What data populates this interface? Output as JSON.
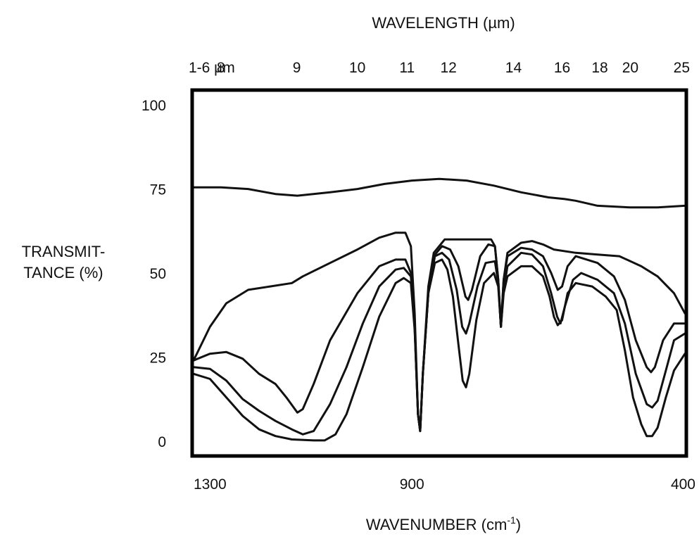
{
  "chart_data": {
    "type": "line",
    "title": "",
    "top_axis_title": "WAVELENGTH (µm)",
    "top_tick_labels": [
      "1-6 µm",
      "8",
      "9",
      "10",
      "11",
      "12",
      "14",
      "16",
      "18",
      "20",
      "25"
    ],
    "top_tick_values": [
      1300,
      1250,
      1111,
      1000,
      909,
      833,
      714,
      625,
      556,
      500,
      400
    ],
    "xlabel": "WAVENUMBER (cm",
    "xlabel_sup": "-1",
    "xlabel_close": ")",
    "ylabel_line1": "TRANSMIT-",
    "ylabel_line2": "TANCE (%)",
    "xlim": [
      1300,
      400
    ],
    "ylim": [
      -4,
      104
    ],
    "x_ticks": [
      1300,
      900,
      400
    ],
    "x_tick_labels": [
      "1300",
      "900",
      "400"
    ],
    "y_ticks": [
      0,
      25,
      50,
      75,
      100
    ],
    "y_tick_labels": [
      "0",
      "25",
      "50",
      "75",
      "100"
    ],
    "grid": false,
    "line_color": "#111111",
    "series": [
      {
        "points": [
          [
            1300,
            75.5
          ],
          [
            1250,
            75.5
          ],
          [
            1200,
            75
          ],
          [
            1150,
            73.5
          ],
          [
            1110,
            73
          ],
          [
            1050,
            74
          ],
          [
            1000,
            75
          ],
          [
            950,
            76.5
          ],
          [
            900,
            77.5
          ],
          [
            850,
            78
          ],
          [
            800,
            77.5
          ],
          [
            750,
            76
          ],
          [
            700,
            74
          ],
          [
            650,
            72.5
          ],
          [
            620,
            72
          ],
          [
            600,
            71.5
          ],
          [
            560,
            70
          ],
          [
            500,
            69.5
          ],
          [
            450,
            69.5
          ],
          [
            400,
            70
          ]
        ]
      },
      {
        "points": [
          [
            1300,
            24
          ],
          [
            1270,
            34
          ],
          [
            1240,
            41
          ],
          [
            1200,
            45
          ],
          [
            1160,
            46
          ],
          [
            1120,
            47
          ],
          [
            1100,
            49
          ],
          [
            1050,
            53
          ],
          [
            1000,
            57
          ],
          [
            960,
            60.5
          ],
          [
            930,
            62
          ],
          [
            912,
            62
          ],
          [
            902,
            58
          ],
          [
            895,
            38
          ],
          [
            889,
            8
          ],
          [
            885,
            3
          ],
          [
            880,
            20
          ],
          [
            870,
            46
          ],
          [
            860,
            56
          ],
          [
            840,
            60
          ],
          [
            800,
            60
          ],
          [
            770,
            60
          ],
          [
            755,
            60
          ],
          [
            748,
            58
          ],
          [
            742,
            48
          ],
          [
            737,
            34
          ],
          [
            732,
            48
          ],
          [
            725,
            56
          ],
          [
            700,
            59
          ],
          [
            680,
            59.5
          ],
          [
            660,
            58.5
          ],
          [
            640,
            57
          ],
          [
            600,
            56
          ],
          [
            560,
            55.5
          ],
          [
            520,
            55
          ],
          [
            480,
            52
          ],
          [
            450,
            49
          ],
          [
            420,
            44
          ],
          [
            400,
            38
          ]
        ]
      },
      {
        "points": [
          [
            1300,
            24
          ],
          [
            1270,
            26
          ],
          [
            1240,
            26.5
          ],
          [
            1210,
            24.5
          ],
          [
            1180,
            20
          ],
          [
            1150,
            17
          ],
          [
            1130,
            13
          ],
          [
            1110,
            8.5
          ],
          [
            1100,
            9.5
          ],
          [
            1080,
            17
          ],
          [
            1050,
            30
          ],
          [
            1000,
            44
          ],
          [
            960,
            52
          ],
          [
            930,
            54
          ],
          [
            912,
            54
          ],
          [
            902,
            50
          ],
          [
            895,
            34
          ],
          [
            889,
            8
          ],
          [
            885,
            3
          ],
          [
            880,
            20
          ],
          [
            870,
            44
          ],
          [
            860,
            55
          ],
          [
            845,
            58
          ],
          [
            830,
            57
          ],
          [
            815,
            52
          ],
          [
            802,
            43
          ],
          [
            797,
            42
          ],
          [
            790,
            45
          ],
          [
            775,
            55
          ],
          [
            760,
            58.5
          ],
          [
            748,
            58
          ],
          [
            742,
            48
          ],
          [
            737,
            34
          ],
          [
            732,
            48
          ],
          [
            725,
            55
          ],
          [
            700,
            57.5
          ],
          [
            680,
            57
          ],
          [
            660,
            55
          ],
          [
            645,
            50
          ],
          [
            633,
            45
          ],
          [
            625,
            46
          ],
          [
            615,
            52
          ],
          [
            600,
            55
          ],
          [
            560,
            53
          ],
          [
            530,
            49
          ],
          [
            510,
            42
          ],
          [
            490,
            30
          ],
          [
            470,
            22
          ],
          [
            462,
            20.5
          ],
          [
            455,
            22
          ],
          [
            440,
            30
          ],
          [
            420,
            35
          ],
          [
            400,
            35
          ]
        ]
      },
      {
        "points": [
          [
            1300,
            22
          ],
          [
            1270,
            21.5
          ],
          [
            1240,
            18
          ],
          [
            1210,
            12.5
          ],
          [
            1180,
            9
          ],
          [
            1150,
            6
          ],
          [
            1120,
            3.5
          ],
          [
            1100,
            2
          ],
          [
            1080,
            3
          ],
          [
            1050,
            11
          ],
          [
            1020,
            22
          ],
          [
            990,
            35
          ],
          [
            960,
            46
          ],
          [
            930,
            51
          ],
          [
            915,
            51.5
          ],
          [
            902,
            49
          ],
          [
            895,
            34
          ],
          [
            889,
            8
          ],
          [
            885,
            3
          ],
          [
            880,
            20
          ],
          [
            870,
            44
          ],
          [
            858,
            55
          ],
          [
            845,
            56
          ],
          [
            832,
            54
          ],
          [
            818,
            45
          ],
          [
            808,
            34
          ],
          [
            801,
            32
          ],
          [
            795,
            35
          ],
          [
            780,
            46
          ],
          [
            765,
            53
          ],
          [
            748,
            53.5
          ],
          [
            742,
            47
          ],
          [
            737,
            34
          ],
          [
            732,
            45
          ],
          [
            725,
            52
          ],
          [
            700,
            56
          ],
          [
            680,
            55.5
          ],
          [
            660,
            52
          ],
          [
            645,
            44
          ],
          [
            634,
            37
          ],
          [
            628,
            35
          ],
          [
            620,
            40
          ],
          [
            605,
            48
          ],
          [
            590,
            50
          ],
          [
            560,
            48
          ],
          [
            530,
            44
          ],
          [
            510,
            35
          ],
          [
            490,
            20
          ],
          [
            470,
            11
          ],
          [
            460,
            10
          ],
          [
            450,
            12
          ],
          [
            435,
            21
          ],
          [
            420,
            30
          ],
          [
            400,
            32
          ]
        ]
      },
      {
        "points": [
          [
            1300,
            20
          ],
          [
            1270,
            18.5
          ],
          [
            1240,
            13
          ],
          [
            1210,
            7.5
          ],
          [
            1180,
            3.5
          ],
          [
            1150,
            1.5
          ],
          [
            1120,
            0.5
          ],
          [
            1080,
            0.2
          ],
          [
            1060,
            0.2
          ],
          [
            1040,
            2
          ],
          [
            1020,
            8
          ],
          [
            990,
            22
          ],
          [
            960,
            37
          ],
          [
            930,
            47
          ],
          [
            915,
            48.5
          ],
          [
            902,
            47
          ],
          [
            895,
            33
          ],
          [
            889,
            8
          ],
          [
            885,
            3
          ],
          [
            880,
            20
          ],
          [
            870,
            44
          ],
          [
            858,
            53
          ],
          [
            845,
            54
          ],
          [
            835,
            51
          ],
          [
            825,
            43
          ],
          [
            815,
            29
          ],
          [
            807,
            18
          ],
          [
            801,
            16
          ],
          [
            795,
            20
          ],
          [
            782,
            36
          ],
          [
            768,
            47
          ],
          [
            750,
            50
          ],
          [
            742,
            46
          ],
          [
            737,
            34
          ],
          [
            732,
            44
          ],
          [
            725,
            49
          ],
          [
            700,
            52
          ],
          [
            680,
            52
          ],
          [
            660,
            49
          ],
          [
            648,
            43
          ],
          [
            640,
            37
          ],
          [
            633,
            34.5
          ],
          [
            625,
            36
          ],
          [
            615,
            44
          ],
          [
            600,
            47
          ],
          [
            570,
            46
          ],
          [
            545,
            43
          ],
          [
            525,
            39
          ],
          [
            510,
            27
          ],
          [
            495,
            13
          ],
          [
            480,
            5
          ],
          [
            470,
            1.5
          ],
          [
            460,
            1.5
          ],
          [
            450,
            4
          ],
          [
            435,
            13
          ],
          [
            420,
            21
          ],
          [
            400,
            26
          ]
        ]
      }
    ]
  }
}
